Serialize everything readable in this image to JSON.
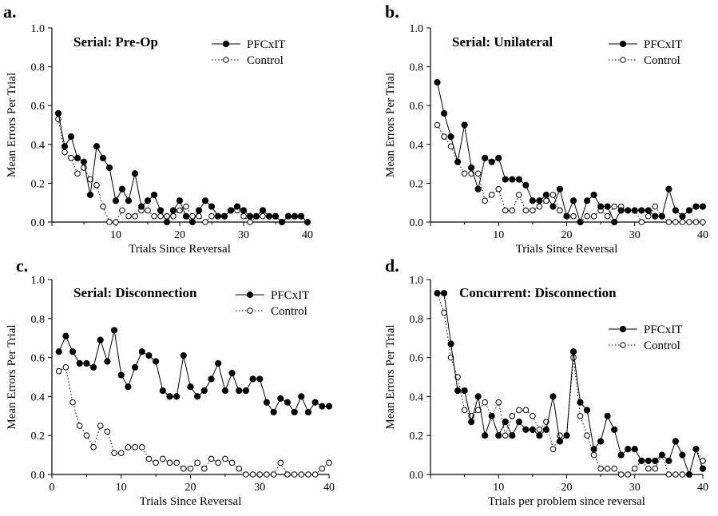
{
  "colors": {
    "pfc": "#000000",
    "control": "#ffffff",
    "stroke": "#000000",
    "background": "#ffffff"
  },
  "chart_data": [
    {
      "type": "line",
      "panel_letter": "a.",
      "title": "Serial: Pre-Op",
      "xlabel": "Trials Since Reversal",
      "ylabel": "Mean Errors Per Trial",
      "xlim": [
        0,
        40
      ],
      "ylim": [
        0,
        1.0
      ],
      "xticks": [
        {
          "v": 10,
          "label": "10"
        },
        {
          "v": 20,
          "label": "20"
        },
        {
          "v": 30,
          "label": "30"
        },
        {
          "v": 40,
          "label": "40"
        }
      ],
      "yticks": [
        {
          "v": 0,
          "label": "0.0"
        },
        {
          "v": 0.2,
          "label": "0.2"
        },
        {
          "v": 0.4,
          "label": "0.4"
        },
        {
          "v": 0.6,
          "label": "0.6"
        },
        {
          "v": 0.8,
          "label": "0.8"
        },
        {
          "v": 1.0,
          "label": "1.0"
        }
      ],
      "legend_position": "top-right",
      "series": [
        {
          "name": "PFCxIT",
          "style": "filled",
          "x": [
            1,
            2,
            3,
            4,
            5,
            6,
            7,
            8,
            9,
            10,
            11,
            12,
            13,
            14,
            15,
            16,
            17,
            18,
            19,
            20,
            21,
            22,
            23,
            24,
            25,
            26,
            27,
            28,
            29,
            30,
            31,
            32,
            33,
            34,
            35,
            36,
            37,
            38,
            39,
            40
          ],
          "values": [
            0.56,
            0.39,
            0.44,
            0.33,
            0.31,
            0.14,
            0.39,
            0.33,
            0.28,
            0.11,
            0.17,
            0.11,
            0.25,
            0.08,
            0.11,
            0.14,
            0.06,
            0.0,
            0.06,
            0.11,
            0.03,
            0.0,
            0.06,
            0.11,
            0.08,
            0.03,
            0.03,
            0.06,
            0.08,
            0.06,
            0.03,
            0.03,
            0.06,
            0.03,
            0.03,
            0.0,
            0.03,
            0.03,
            0.03,
            0.0
          ]
        },
        {
          "name": "Control",
          "style": "open",
          "x": [
            1,
            2,
            3,
            4,
            5,
            6,
            7,
            8,
            9,
            10,
            11,
            12,
            13,
            14,
            15,
            16,
            17,
            18,
            19,
            20,
            21,
            22,
            23,
            24,
            25,
            26,
            27,
            28,
            29,
            30,
            31,
            32,
            33,
            34,
            35,
            36,
            37,
            38,
            39,
            40
          ],
          "values": [
            0.53,
            0.36,
            0.33,
            0.25,
            0.28,
            0.22,
            0.19,
            0.08,
            0.0,
            0.0,
            0.06,
            0.03,
            0.03,
            0.06,
            0.06,
            0.03,
            0.03,
            0.03,
            0.03,
            0.06,
            0.08,
            0.03,
            0.03,
            0.0,
            0.03,
            0.03,
            0.03,
            0.06,
            0.06,
            0.03,
            0.0,
            0.03,
            0.03,
            0.03,
            0.03,
            0.0,
            0.03,
            0.03,
            0.03,
            0.0
          ]
        }
      ]
    },
    {
      "type": "line",
      "panel_letter": "b.",
      "title": "Serial: Unilateral",
      "xlabel": "Trials Since Reversal",
      "ylabel": "Mean Errors Per Trial",
      "xlim": [
        0,
        40
      ],
      "ylim": [
        0,
        1.0
      ],
      "xticks": [
        {
          "v": 10,
          "label": "10"
        },
        {
          "v": 20,
          "label": "20"
        },
        {
          "v": 30,
          "label": "30"
        },
        {
          "v": 40,
          "label": "40"
        }
      ],
      "yticks": [
        {
          "v": 0,
          "label": "0.0"
        },
        {
          "v": 0.2,
          "label": "0.2"
        },
        {
          "v": 0.4,
          "label": "0.4"
        },
        {
          "v": 0.6,
          "label": "0.6"
        },
        {
          "v": 0.8,
          "label": "0.8"
        },
        {
          "v": 1.0,
          "label": "1.0"
        }
      ],
      "legend_position": "top-right",
      "series": [
        {
          "name": "PFCxIT",
          "style": "filled",
          "x": [
            1,
            2,
            3,
            4,
            5,
            6,
            7,
            8,
            9,
            10,
            11,
            12,
            13,
            14,
            15,
            16,
            17,
            18,
            19,
            20,
            21,
            22,
            23,
            24,
            25,
            26,
            27,
            28,
            29,
            30,
            31,
            32,
            33,
            34,
            35,
            36,
            37,
            38,
            39,
            40
          ],
          "values": [
            0.72,
            0.56,
            0.44,
            0.31,
            0.5,
            0.28,
            0.17,
            0.33,
            0.31,
            0.33,
            0.22,
            0.22,
            0.22,
            0.19,
            0.11,
            0.11,
            0.14,
            0.08,
            0.17,
            0.03,
            0.11,
            0.0,
            0.11,
            0.14,
            0.08,
            0.08,
            0.0,
            0.06,
            0.06,
            0.06,
            0.06,
            0.06,
            0.03,
            0.03,
            0.17,
            0.06,
            0.03,
            0.06,
            0.08,
            0.08
          ]
        },
        {
          "name": "Control",
          "style": "open",
          "x": [
            1,
            2,
            3,
            4,
            5,
            6,
            7,
            8,
            9,
            10,
            11,
            12,
            13,
            14,
            15,
            16,
            17,
            18,
            19,
            20,
            21,
            22,
            23,
            24,
            25,
            26,
            27,
            28,
            29,
            30,
            31,
            32,
            33,
            34,
            35,
            36,
            37,
            38,
            39,
            40
          ],
          "values": [
            0.5,
            0.44,
            0.39,
            0.31,
            0.25,
            0.25,
            0.25,
            0.11,
            0.14,
            0.17,
            0.06,
            0.06,
            0.14,
            0.06,
            0.06,
            0.08,
            0.11,
            0.14,
            0.06,
            0.03,
            0.03,
            0.0,
            0.03,
            0.03,
            0.06,
            0.03,
            0.08,
            0.08,
            0.06,
            0.06,
            0.0,
            0.03,
            0.08,
            0.03,
            0.0,
            0.0,
            0.0,
            0.0,
            0.0,
            0.0
          ]
        }
      ]
    },
    {
      "type": "line",
      "panel_letter": "c.",
      "title": "Serial: Disconnection",
      "xlabel": "Trials Since Reversal",
      "ylabel": "Mean Errors Per Trial",
      "xlim": [
        0,
        40
      ],
      "ylim": [
        0,
        1.0
      ],
      "xticks": [
        {
          "v": 0,
          "label": "0"
        },
        {
          "v": 10,
          "label": "10"
        },
        {
          "v": 20,
          "label": "20"
        },
        {
          "v": 30,
          "label": "30"
        },
        {
          "v": 40,
          "label": "40"
        }
      ],
      "yticks": [
        {
          "v": 0,
          "label": "0.0"
        },
        {
          "v": 0.2,
          "label": "0.2"
        },
        {
          "v": 0.4,
          "label": "0.4"
        },
        {
          "v": 0.6,
          "label": "0.6"
        },
        {
          "v": 0.8,
          "label": "0.8"
        },
        {
          "v": 1.0,
          "label": "1.0"
        }
      ],
      "legend_position": "top-right",
      "series": [
        {
          "name": "PFCxIT",
          "style": "filled",
          "x": [
            1,
            2,
            3,
            4,
            5,
            6,
            7,
            8,
            9,
            10,
            11,
            12,
            13,
            14,
            15,
            16,
            17,
            18,
            19,
            20,
            21,
            22,
            23,
            24,
            25,
            26,
            27,
            28,
            29,
            30,
            31,
            32,
            33,
            34,
            35,
            36,
            37,
            38,
            39,
            40
          ],
          "values": [
            0.63,
            0.71,
            0.63,
            0.57,
            0.57,
            0.55,
            0.69,
            0.58,
            0.74,
            0.51,
            0.45,
            0.55,
            0.63,
            0.61,
            0.58,
            0.43,
            0.4,
            0.4,
            0.61,
            0.45,
            0.4,
            0.43,
            0.49,
            0.57,
            0.43,
            0.52,
            0.43,
            0.43,
            0.49,
            0.49,
            0.37,
            0.32,
            0.39,
            0.37,
            0.32,
            0.4,
            0.32,
            0.37,
            0.35,
            0.35
          ]
        },
        {
          "name": "Control",
          "style": "open",
          "x": [
            1,
            2,
            3,
            4,
            5,
            6,
            7,
            8,
            9,
            10,
            11,
            12,
            13,
            14,
            15,
            16,
            17,
            18,
            19,
            20,
            21,
            22,
            23,
            24,
            25,
            26,
            27,
            28,
            29,
            30,
            31,
            32,
            33,
            34,
            35,
            36,
            37,
            38,
            39,
            40
          ],
          "values": [
            0.53,
            0.55,
            0.37,
            0.25,
            0.2,
            0.14,
            0.25,
            0.22,
            0.11,
            0.11,
            0.14,
            0.14,
            0.14,
            0.08,
            0.06,
            0.08,
            0.06,
            0.06,
            0.03,
            0.03,
            0.06,
            0.03,
            0.08,
            0.06,
            0.08,
            0.06,
            0.03,
            0.0,
            0.0,
            0.0,
            0.0,
            0.0,
            0.06,
            0.0,
            0.0,
            0.0,
            0.0,
            0.0,
            0.03,
            0.06
          ]
        }
      ]
    },
    {
      "type": "line",
      "panel_letter": "d.",
      "title": "Concurrent: Disconnection",
      "xlabel": "Trials per problem since reversal",
      "ylabel": "Mean Errors Per Trial",
      "xlim": [
        0,
        40
      ],
      "ylim": [
        0,
        1.0
      ],
      "xticks": [
        {
          "v": 10,
          "label": "10"
        },
        {
          "v": 20,
          "label": "20"
        },
        {
          "v": 30,
          "label": "30"
        },
        {
          "v": 40,
          "label": "40"
        }
      ],
      "yticks": [
        {
          "v": 0,
          "label": "0.0"
        },
        {
          "v": 0.2,
          "label": "0.2"
        },
        {
          "v": 0.4,
          "label": "0.4"
        },
        {
          "v": 0.6,
          "label": "0.6"
        },
        {
          "v": 0.8,
          "label": "0.8"
        },
        {
          "v": 1.0,
          "label": "1.0"
        }
      ],
      "legend_position": "top-right",
      "series": [
        {
          "name": "PFCxIT",
          "style": "filled",
          "x": [
            1,
            2,
            3,
            4,
            5,
            6,
            7,
            8,
            9,
            10,
            11,
            12,
            13,
            14,
            15,
            16,
            17,
            18,
            19,
            20,
            21,
            22,
            23,
            24,
            25,
            26,
            27,
            28,
            29,
            30,
            31,
            32,
            33,
            34,
            35,
            36,
            37,
            38,
            39,
            40
          ],
          "values": [
            0.93,
            0.93,
            0.67,
            0.43,
            0.43,
            0.27,
            0.4,
            0.2,
            0.3,
            0.2,
            0.27,
            0.2,
            0.27,
            0.23,
            0.23,
            0.2,
            0.23,
            0.4,
            0.17,
            0.2,
            0.63,
            0.37,
            0.33,
            0.13,
            0.17,
            0.3,
            0.23,
            0.1,
            0.13,
            0.13,
            0.07,
            0.07,
            0.07,
            0.1,
            0.07,
            0.17,
            0.1,
            0.0,
            0.13,
            0.03
          ]
        },
        {
          "name": "Control",
          "style": "open",
          "x": [
            1,
            2,
            3,
            4,
            5,
            6,
            7,
            8,
            9,
            10,
            11,
            12,
            13,
            14,
            15,
            16,
            17,
            18,
            19,
            20,
            21,
            22,
            23,
            24,
            25,
            26,
            27,
            28,
            29,
            30,
            31,
            32,
            33,
            34,
            35,
            36,
            37,
            38,
            39,
            40
          ],
          "values": [
            0.93,
            0.83,
            0.6,
            0.5,
            0.33,
            0.3,
            0.33,
            0.37,
            0.3,
            0.37,
            0.2,
            0.3,
            0.33,
            0.33,
            0.3,
            0.23,
            0.27,
            0.13,
            0.2,
            0.2,
            0.6,
            0.3,
            0.2,
            0.1,
            0.03,
            0.03,
            0.03,
            0.0,
            0.0,
            0.03,
            0.07,
            0.03,
            0.03,
            0.1,
            0.0,
            0.0,
            0.0,
            0.0,
            0.13,
            0.07
          ]
        }
      ]
    }
  ]
}
